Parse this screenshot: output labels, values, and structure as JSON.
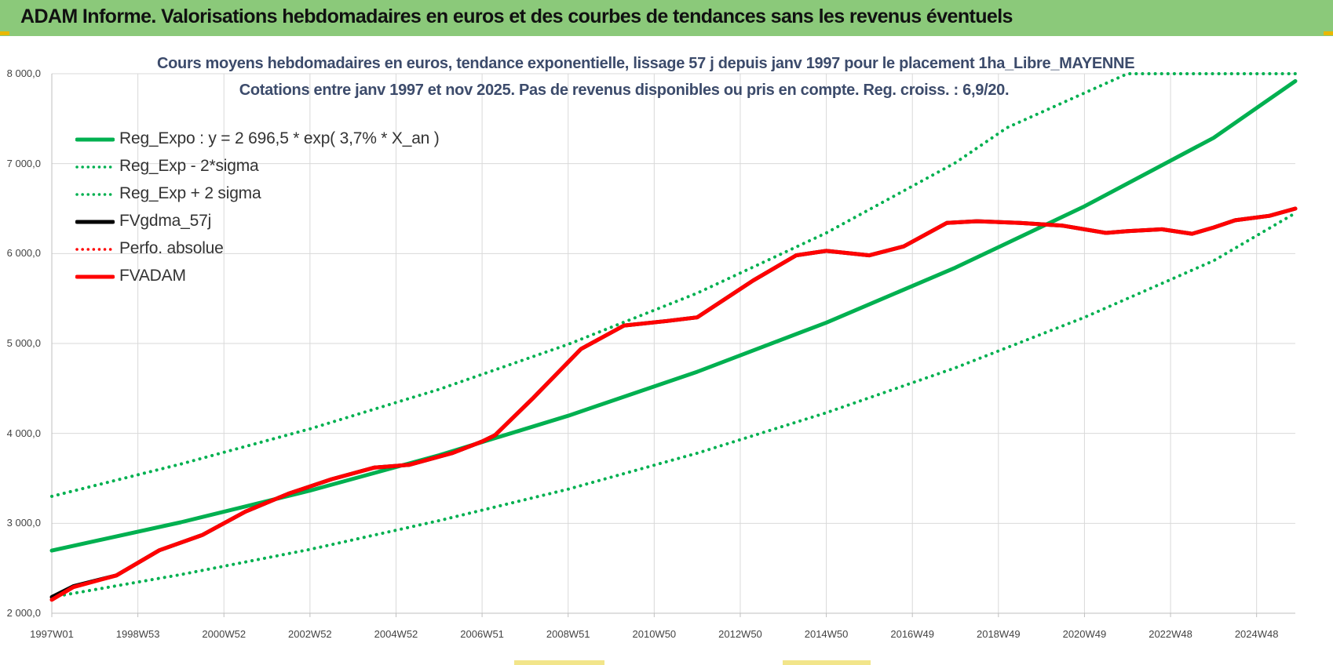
{
  "header": {
    "title": "ADAM Informe. Valorisations hebdomadaires en euros et des courbes de tendances sans les revenus éventuels"
  },
  "chart_data": {
    "type": "line",
    "title": "Cours moyens hebdomadaires en euros, tendance exponentielle, lissage 57 j depuis janv 1997 pour le placement 1ha_Libre_MAYENNE",
    "subtitle": "Cotations entre janv 1997 et nov 2025. Pas de revenus disponibles ou pris en compte. Reg. croiss. : 6,9/20.",
    "xlabel": "",
    "ylabel": "",
    "xlim": [
      1997.0,
      2025.9
    ],
    "ylim": [
      2000,
      8000
    ],
    "grid": true,
    "legend_position": "top-left",
    "y_ticks": [
      "2 000,0",
      "3 000,0",
      "4 000,0",
      "5 000,0",
      "6 000,0",
      "7 000,0",
      "8 000,0"
    ],
    "x_ticks": [
      {
        "label": "1997W01",
        "x": 1997.0
      },
      {
        "label": "1998W53",
        "x": 1999.0
      },
      {
        "label": "2000W52",
        "x": 2001.0
      },
      {
        "label": "2002W52",
        "x": 2003.0
      },
      {
        "label": "2004W52",
        "x": 2005.0
      },
      {
        "label": "2006W51",
        "x": 2007.0
      },
      {
        "label": "2008W51",
        "x": 2009.0
      },
      {
        "label": "2010W50",
        "x": 2011.0
      },
      {
        "label": "2012W50",
        "x": 2013.0
      },
      {
        "label": "2014W50",
        "x": 2015.0
      },
      {
        "label": "2016W49",
        "x": 2017.0
      },
      {
        "label": "2018W49",
        "x": 2019.0
      },
      {
        "label": "2020W49",
        "x": 2021.0
      },
      {
        "label": "2022W48",
        "x": 2023.0
      },
      {
        "label": "2024W48",
        "x": 2025.0
      }
    ],
    "series": [
      {
        "name": "Reg_Expo : y = 2 696,5 * exp( 3,7% *  X_an )",
        "color": "#00b050",
        "style": "solid",
        "x": [
          1997.0,
          2000.0,
          2003.0,
          2006.0,
          2009.0,
          2012.0,
          2015.0,
          2018.0,
          2021.0,
          2024.0,
          2025.9
        ],
        "values": [
          2697,
          3012,
          3364,
          3757,
          4196,
          4685,
          5232,
          5843,
          6525,
          7287,
          7918
        ]
      },
      {
        "name": "Reg_Exp - 2*sigma",
        "color": "#00b050",
        "style": "dotted",
        "x": [
          1997.0,
          2000.0,
          2003.0,
          2006.0,
          2009.0,
          2012.0,
          2015.0,
          2018.0,
          2021.0,
          2024.0,
          2025.9
        ],
        "values": [
          2180,
          2430,
          2710,
          3030,
          3380,
          3780,
          4230,
          4730,
          5290,
          5920,
          6450
        ]
      },
      {
        "name": "Reg_Exp + 2 sigma",
        "color": "#00b050",
        "style": "dotted",
        "x": [
          1997.0,
          2000.0,
          2003.0,
          2006.0,
          2009.0,
          2012.0,
          2015.0,
          2018.0,
          2019.2,
          2022.0,
          2025.9
        ],
        "values": [
          3300,
          3660,
          4050,
          4490,
          4990,
          5560,
          6230,
          7010,
          7400,
          8000,
          8000
        ]
      },
      {
        "name": "FVgdma_57j",
        "color": "#000000",
        "style": "solid",
        "x": [
          1997.0,
          1997.5,
          1998.5,
          1999.5,
          2000.5,
          2001.5,
          2002.5,
          2003.5,
          2004.5,
          2005.3,
          2006.3,
          2007.0,
          2007.3,
          2008.2,
          2009.3,
          2010.3,
          2011.3,
          2012.0,
          2013.3,
          2014.3,
          2015.0,
          2016.0,
          2016.8,
          2017.8,
          2018.5,
          2019.5,
          2020.5,
          2021.5,
          2022.0,
          2022.8,
          2023.5,
          2024.0,
          2024.5,
          2025.3,
          2025.9
        ],
        "values": [
          2180,
          2300,
          2420,
          2700,
          2870,
          3130,
          3330,
          3490,
          3620,
          3650,
          3780,
          3910,
          3980,
          4400,
          4940,
          5200,
          5250,
          5290,
          5700,
          5980,
          6030,
          5980,
          6080,
          6340,
          6360,
          6340,
          6310,
          6230,
          6250,
          6270,
          6220,
          6290,
          6370,
          6420,
          6500
        ]
      },
      {
        "name": "Perfo. absolue",
        "color": "#ff0000",
        "style": "dotted",
        "x": [],
        "values": []
      },
      {
        "name": "FVADAM",
        "color": "#ff0000",
        "style": "solid",
        "x": [
          1997.0,
          1997.5,
          1998.5,
          1999.5,
          2000.5,
          2001.5,
          2002.5,
          2003.5,
          2004.5,
          2005.3,
          2006.3,
          2007.0,
          2007.3,
          2008.2,
          2009.3,
          2010.3,
          2011.3,
          2012.0,
          2013.3,
          2014.3,
          2015.0,
          2016.0,
          2016.8,
          2017.8,
          2018.5,
          2019.5,
          2020.5,
          2021.5,
          2022.0,
          2022.8,
          2023.5,
          2024.0,
          2024.5,
          2025.3,
          2025.9
        ],
        "values": [
          2150,
          2290,
          2420,
          2700,
          2870,
          3130,
          3330,
          3490,
          3620,
          3650,
          3780,
          3910,
          3980,
          4400,
          4940,
          5200,
          5250,
          5290,
          5700,
          5980,
          6030,
          5980,
          6080,
          6340,
          6360,
          6340,
          6310,
          6230,
          6250,
          6270,
          6220,
          6290,
          6370,
          6420,
          6500
        ]
      }
    ]
  }
}
